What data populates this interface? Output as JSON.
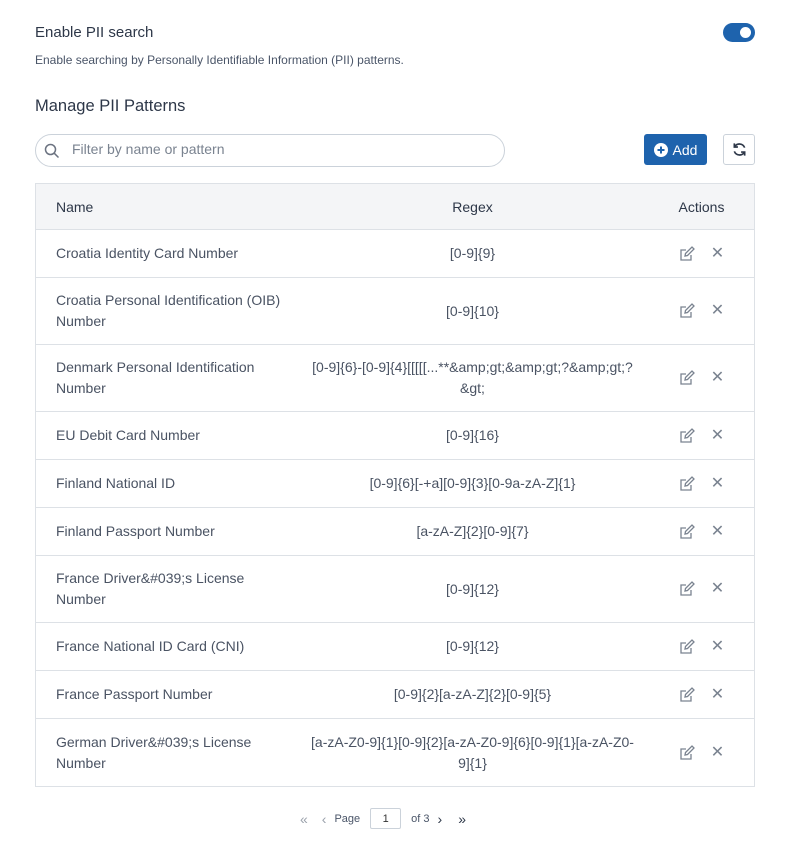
{
  "settings": {
    "title": "Enable PII search",
    "description": "Enable searching by Personally Identifiable Information (PII) patterns.",
    "enabled": true,
    "accent": "#1e63ad"
  },
  "manage": {
    "title": "Manage PII Patterns",
    "search_placeholder": "Filter by name or pattern",
    "add_label": "Add"
  },
  "table": {
    "headers": {
      "name": "Name",
      "regex": "Regex",
      "actions": "Actions"
    },
    "rows": [
      {
        "name": "Croatia Identity Card Number",
        "regex": "[0-9]{9}"
      },
      {
        "name": "Croatia Personal Identification (OIB) Number",
        "regex": "[0-9]{10}"
      },
      {
        "name": "Denmark Personal Identification Number",
        "regex": "[0-9]{6}-[0-9]{4}[[[[[...**&amp;gt;&amp;gt;?&amp;gt;?&gt;"
      },
      {
        "name": "EU Debit Card Number",
        "regex": "[0-9]{16}"
      },
      {
        "name": "Finland National ID",
        "regex": "[0-9]{6}[-+a][0-9]{3}[0-9a-zA-Z]{1}"
      },
      {
        "name": "Finland Passport Number",
        "regex": "[a-zA-Z]{2}[0-9]{7}"
      },
      {
        "name": "France Driver&#039;s License Number",
        "regex": "[0-9]{12}"
      },
      {
        "name": "France National ID Card (CNI)",
        "regex": "[0-9]{12}"
      },
      {
        "name": "France Passport Number",
        "regex": "[0-9]{2}[a-zA-Z]{2}[0-9]{5}"
      },
      {
        "name": "German Driver&#039;s License Number",
        "regex": "[a-zA-Z0-9]{1}[0-9]{2}[a-zA-Z0-9]{6}[0-9]{1}[a-zA-Z0-9]{1}"
      }
    ]
  },
  "pagination": {
    "page_label": "Page",
    "current_page": "1",
    "of_label": "of 3"
  }
}
